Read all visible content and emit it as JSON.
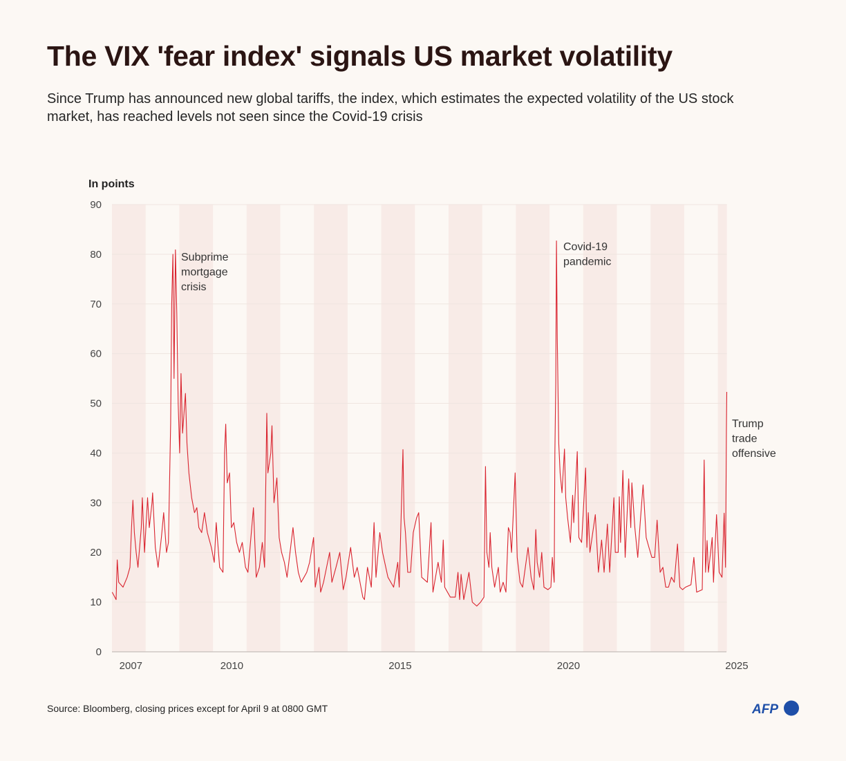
{
  "title": "The VIX 'fear index' signals US market volatility",
  "subtitle": "Since Trump has announced new global tariffs, the index, which estimates the expected volatility of the US stock market, has reached levels not seen since the Covid-19 crisis",
  "source": "Source: Bloomberg, closing prices except for April 9 at 0800 GMT",
  "logo_text": "AFP",
  "colors": {
    "line": "#d9232e",
    "band": "#f8ebe7",
    "background": "#fcf8f4",
    "title": "#2b1513",
    "logo": "#1e4fa8"
  },
  "chart_data": {
    "type": "line",
    "ylabel": "In points",
    "ylim": [
      0,
      90
    ],
    "yticks": [
      0,
      10,
      20,
      30,
      40,
      50,
      60,
      70,
      80,
      90
    ],
    "xlim": [
      "2007-01-01",
      "2025-04-09"
    ],
    "xticks": [
      "2007",
      "2010",
      "2015",
      "2020",
      "2025"
    ],
    "grid": true,
    "alternating_year_bands": true,
    "annotations": [
      {
        "lines": [
          "Subprime",
          "mortgage",
          "crisis"
        ],
        "date": "2008-11-20"
      },
      {
        "lines": [
          "Covid-19",
          "pandemic"
        ],
        "date": "2020-03-16"
      },
      {
        "lines": [
          "Trump",
          "trade",
          "offensive"
        ],
        "date": "2025-04-08"
      }
    ],
    "series": [
      {
        "points": [
          [
            "2007-01-03",
            12
          ],
          [
            "2007-02-15",
            10.5
          ],
          [
            "2007-02-27",
            18.5
          ],
          [
            "2007-03-15",
            14
          ],
          [
            "2007-05-01",
            13
          ],
          [
            "2007-06-15",
            15
          ],
          [
            "2007-07-15",
            17
          ],
          [
            "2007-08-01",
            25
          ],
          [
            "2007-08-16",
            30.5
          ],
          [
            "2007-09-01",
            24
          ],
          [
            "2007-09-20",
            20
          ],
          [
            "2007-10-10",
            17
          ],
          [
            "2007-11-15",
            25
          ],
          [
            "2007-11-26",
            31
          ],
          [
            "2007-12-20",
            20
          ],
          [
            "2008-01-22",
            31
          ],
          [
            "2008-02-10",
            25
          ],
          [
            "2008-03-10",
            30
          ],
          [
            "2008-03-17",
            32
          ],
          [
            "2008-04-15",
            21
          ],
          [
            "2008-05-15",
            17
          ],
          [
            "2008-06-20",
            23
          ],
          [
            "2008-07-15",
            28
          ],
          [
            "2008-08-15",
            20
          ],
          [
            "2008-09-05",
            22
          ],
          [
            "2008-09-29",
            46
          ],
          [
            "2008-10-10",
            70
          ],
          [
            "2008-10-24",
            80
          ],
          [
            "2008-11-05",
            55
          ],
          [
            "2008-11-20",
            80.9
          ],
          [
            "2008-12-05",
            68
          ],
          [
            "2008-12-20",
            50
          ],
          [
            "2009-01-05",
            40
          ],
          [
            "2009-01-20",
            56
          ],
          [
            "2009-02-05",
            44
          ],
          [
            "2009-03-09",
            52
          ],
          [
            "2009-03-25",
            42
          ],
          [
            "2009-04-15",
            36
          ],
          [
            "2009-05-15",
            31
          ],
          [
            "2009-06-15",
            28
          ],
          [
            "2009-07-10",
            29
          ],
          [
            "2009-08-01",
            25
          ],
          [
            "2009-09-01",
            24
          ],
          [
            "2009-10-01",
            28
          ],
          [
            "2009-11-01",
            24
          ],
          [
            "2009-12-15",
            21
          ],
          [
            "2010-01-15",
            18
          ],
          [
            "2010-02-05",
            26
          ],
          [
            "2010-03-15",
            17
          ],
          [
            "2010-04-20",
            16
          ],
          [
            "2010-05-07",
            40
          ],
          [
            "2010-05-20",
            45.8
          ],
          [
            "2010-06-05",
            34
          ],
          [
            "2010-06-30",
            36
          ],
          [
            "2010-07-20",
            25
          ],
          [
            "2010-08-15",
            26
          ],
          [
            "2010-09-15",
            22
          ],
          [
            "2010-10-15",
            20
          ],
          [
            "2010-11-15",
            22
          ],
          [
            "2010-12-20",
            17
          ],
          [
            "2011-01-15",
            16
          ],
          [
            "2011-03-16",
            29
          ],
          [
            "2011-04-15",
            15
          ],
          [
            "2011-05-20",
            17
          ],
          [
            "2011-06-20",
            22
          ],
          [
            "2011-07-15",
            17
          ],
          [
            "2011-08-08",
            48
          ],
          [
            "2011-08-20",
            36
          ],
          [
            "2011-09-20",
            40
          ],
          [
            "2011-10-03",
            45.5
          ],
          [
            "2011-10-25",
            30
          ],
          [
            "2011-11-25",
            35
          ],
          [
            "2011-12-20",
            23
          ],
          [
            "2012-01-15",
            20
          ],
          [
            "2012-02-15",
            18
          ],
          [
            "2012-03-15",
            15
          ],
          [
            "2012-05-18",
            25
          ],
          [
            "2012-06-15",
            20
          ],
          [
            "2012-07-15",
            16
          ],
          [
            "2012-08-15",
            14
          ],
          [
            "2012-09-15",
            15
          ],
          [
            "2012-10-15",
            16
          ],
          [
            "2012-11-15",
            18
          ],
          [
            "2012-12-28",
            23
          ],
          [
            "2013-01-15",
            13
          ],
          [
            "2013-02-25",
            17
          ],
          [
            "2013-03-15",
            12
          ],
          [
            "2013-04-15",
            14
          ],
          [
            "2013-06-20",
            20
          ],
          [
            "2013-07-15",
            14
          ],
          [
            "2013-08-28",
            17
          ],
          [
            "2013-10-08",
            20
          ],
          [
            "2013-11-15",
            12.5
          ],
          [
            "2013-12-15",
            15
          ],
          [
            "2014-02-03",
            21
          ],
          [
            "2014-03-15",
            15
          ],
          [
            "2014-04-15",
            17
          ],
          [
            "2014-06-15",
            11
          ],
          [
            "2014-07-03",
            10.5
          ],
          [
            "2014-08-05",
            17
          ],
          [
            "2014-09-15",
            13
          ],
          [
            "2014-10-15",
            26
          ],
          [
            "2014-11-05",
            15
          ],
          [
            "2014-12-16",
            24
          ],
          [
            "2015-01-15",
            20
          ],
          [
            "2015-03-15",
            15
          ],
          [
            "2015-05-15",
            13
          ],
          [
            "2015-06-29",
            18
          ],
          [
            "2015-07-15",
            13
          ],
          [
            "2015-08-24",
            40.7
          ],
          [
            "2015-09-05",
            27
          ],
          [
            "2015-09-20",
            24
          ],
          [
            "2015-10-15",
            16
          ],
          [
            "2015-11-15",
            16
          ],
          [
            "2015-12-14",
            24
          ],
          [
            "2016-01-20",
            27
          ],
          [
            "2016-02-11",
            28
          ],
          [
            "2016-03-15",
            15
          ],
          [
            "2016-05-15",
            14
          ],
          [
            "2016-06-24",
            26
          ],
          [
            "2016-07-15",
            12
          ],
          [
            "2016-09-09",
            18
          ],
          [
            "2016-10-15",
            14
          ],
          [
            "2016-11-04",
            22.5
          ],
          [
            "2016-11-20",
            13
          ],
          [
            "2016-12-20",
            12
          ],
          [
            "2017-01-20",
            11
          ],
          [
            "2017-03-15",
            11
          ],
          [
            "2017-04-13",
            16
          ],
          [
            "2017-05-01",
            10.5
          ],
          [
            "2017-05-17",
            15.6
          ],
          [
            "2017-06-15",
            10.5
          ],
          [
            "2017-08-10",
            16
          ],
          [
            "2017-09-15",
            10
          ],
          [
            "2017-11-03",
            9.2
          ],
          [
            "2017-12-15",
            10
          ],
          [
            "2018-01-20",
            11
          ],
          [
            "2018-02-05",
            37.3
          ],
          [
            "2018-02-20",
            20
          ],
          [
            "2018-03-15",
            17
          ],
          [
            "2018-03-28",
            24
          ],
          [
            "2018-04-15",
            17
          ],
          [
            "2018-05-15",
            13
          ],
          [
            "2018-06-25",
            17
          ],
          [
            "2018-07-15",
            12
          ],
          [
            "2018-08-15",
            14
          ],
          [
            "2018-09-15",
            12
          ],
          [
            "2018-10-11",
            25
          ],
          [
            "2018-10-30",
            24
          ],
          [
            "2018-11-15",
            20
          ],
          [
            "2018-12-24",
            36
          ],
          [
            "2019-01-15",
            19
          ],
          [
            "2019-02-15",
            14
          ],
          [
            "2019-03-15",
            13
          ],
          [
            "2019-05-13",
            21
          ],
          [
            "2019-06-15",
            15
          ],
          [
            "2019-07-15",
            12.5
          ],
          [
            "2019-08-05",
            24.6
          ],
          [
            "2019-08-20",
            18
          ],
          [
            "2019-09-15",
            15
          ],
          [
            "2019-10-08",
            20
          ],
          [
            "2019-11-01",
            13
          ],
          [
            "2019-12-15",
            12.5
          ],
          [
            "2020-01-15",
            13
          ],
          [
            "2020-01-31",
            19
          ],
          [
            "2020-02-20",
            14
          ],
          [
            "2020-02-28",
            40
          ],
          [
            "2020-03-09",
            54
          ],
          [
            "2020-03-16",
            82.7
          ],
          [
            "2020-03-25",
            63
          ],
          [
            "2020-04-10",
            42
          ],
          [
            "2020-04-25",
            36
          ],
          [
            "2020-05-15",
            32
          ],
          [
            "2020-06-11",
            40.8
          ],
          [
            "2020-06-25",
            31
          ],
          [
            "2020-07-15",
            27
          ],
          [
            "2020-08-15",
            22
          ],
          [
            "2020-09-08",
            31.5
          ],
          [
            "2020-09-20",
            26
          ],
          [
            "2020-10-28",
            40.3
          ],
          [
            "2020-11-15",
            23
          ],
          [
            "2020-12-15",
            22
          ],
          [
            "2021-01-27",
            37
          ],
          [
            "2021-02-10",
            21
          ],
          [
            "2021-02-25",
            28
          ],
          [
            "2021-03-15",
            20
          ],
          [
            "2021-05-12",
            27.6
          ],
          [
            "2021-06-15",
            16
          ],
          [
            "2021-07-19",
            22.5
          ],
          [
            "2021-08-15",
            16
          ],
          [
            "2021-09-20",
            25.7
          ],
          [
            "2021-10-15",
            16
          ],
          [
            "2021-11-30",
            31
          ],
          [
            "2021-12-15",
            20
          ],
          [
            "2022-01-15",
            20
          ],
          [
            "2022-01-27",
            31.2
          ],
          [
            "2022-02-10",
            22
          ],
          [
            "2022-03-07",
            36.5
          ],
          [
            "2022-04-01",
            19
          ],
          [
            "2022-05-09",
            34.8
          ],
          [
            "2022-06-01",
            25
          ],
          [
            "2022-06-13",
            34
          ],
          [
            "2022-07-15",
            25
          ],
          [
            "2022-08-15",
            19
          ],
          [
            "2022-09-15",
            27
          ],
          [
            "2022-10-12",
            33.6
          ],
          [
            "2022-11-15",
            23
          ],
          [
            "2022-12-15",
            21
          ],
          [
            "2023-01-15",
            19
          ],
          [
            "2023-02-15",
            19
          ],
          [
            "2023-03-13",
            26.5
          ],
          [
            "2023-04-15",
            16
          ],
          [
            "2023-05-15",
            17
          ],
          [
            "2023-06-15",
            13
          ],
          [
            "2023-07-15",
            13
          ],
          [
            "2023-08-15",
            15
          ],
          [
            "2023-09-15",
            14
          ],
          [
            "2023-10-20",
            21.7
          ],
          [
            "2023-11-15",
            13
          ],
          [
            "2023-12-15",
            12.5
          ],
          [
            "2024-01-15",
            13
          ],
          [
            "2024-03-15",
            13.5
          ],
          [
            "2024-04-15",
            19
          ],
          [
            "2024-05-15",
            12
          ],
          [
            "2024-07-15",
            12.5
          ],
          [
            "2024-08-05",
            38.6
          ],
          [
            "2024-08-20",
            16
          ],
          [
            "2024-09-06",
            22.4
          ],
          [
            "2024-09-20",
            16
          ],
          [
            "2024-10-31",
            23
          ],
          [
            "2024-11-15",
            14
          ],
          [
            "2024-12-18",
            27.6
          ],
          [
            "2025-01-15",
            16
          ],
          [
            "2025-02-15",
            15
          ],
          [
            "2025-03-10",
            27.9
          ],
          [
            "2025-03-25",
            17
          ],
          [
            "2025-04-04",
            45
          ],
          [
            "2025-04-08",
            52.3
          ]
        ]
      }
    ]
  }
}
